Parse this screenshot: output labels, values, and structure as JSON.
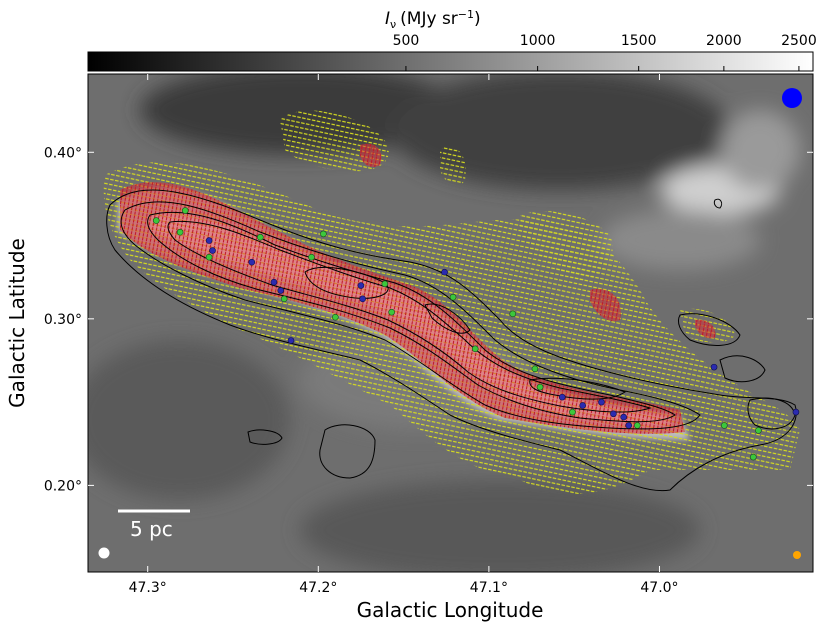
{
  "figure": {
    "colorbar_label_symbol": "I",
    "colorbar_label_sub": "ν",
    "colorbar_label_unit": "(MJy sr",
    "colorbar_label_exp": "−1",
    "colorbar_label_close": ")",
    "x_label": "Galactic Longitude",
    "y_label": "Galactic Latitude",
    "scale_bar_label": "5 pc"
  },
  "chart_data": {
    "type": "heatmap",
    "xlabel": "Galactic Longitude",
    "ylabel": "Galactic Latitude",
    "x_ticks": [
      {
        "value": 47.3,
        "label": "47.3°"
      },
      {
        "value": 47.2,
        "label": "47.2°"
      },
      {
        "value": 47.1,
        "label": "47.1°"
      },
      {
        "value": 47.0,
        "label": "47.0°"
      }
    ],
    "y_ticks": [
      {
        "value": 0.4,
        "label": "0.40°"
      },
      {
        "value": 0.3,
        "label": "0.30°"
      },
      {
        "value": 0.2,
        "label": "0.20°"
      }
    ],
    "xlim": [
      47.335,
      46.91
    ],
    "ylim": [
      0.148,
      0.447
    ],
    "colorbar": {
      "label": "Iν (MJy sr−1)",
      "scale": "sqrt",
      "range": [
        0,
        2600
      ],
      "ticks": [
        500,
        1000,
        1500,
        2000,
        2500
      ],
      "tick_labels": [
        "500",
        "1000",
        "1500",
        "2000",
        "2500"
      ],
      "cmap": "gray"
    },
    "filament_spine": [
      {
        "l": 47.32,
        "b": 0.358
      },
      {
        "l": 47.28,
        "b": 0.345
      },
      {
        "l": 47.24,
        "b": 0.33
      },
      {
        "l": 47.2,
        "b": 0.316
      },
      {
        "l": 47.17,
        "b": 0.313
      },
      {
        "l": 47.14,
        "b": 0.302
      },
      {
        "l": 47.11,
        "b": 0.29
      },
      {
        "l": 47.09,
        "b": 0.268
      },
      {
        "l": 47.06,
        "b": 0.252
      },
      {
        "l": 47.03,
        "b": 0.24
      },
      {
        "l": 47.0,
        "b": 0.235
      },
      {
        "l": 46.96,
        "b": 0.238
      },
      {
        "l": 46.92,
        "b": 0.24
      }
    ],
    "green_sources": [
      {
        "l": 47.295,
        "b": 0.359
      },
      {
        "l": 47.281,
        "b": 0.352
      },
      {
        "l": 47.278,
        "b": 0.365
      },
      {
        "l": 47.264,
        "b": 0.337
      },
      {
        "l": 47.234,
        "b": 0.349
      },
      {
        "l": 47.204,
        "b": 0.337
      },
      {
        "l": 47.197,
        "b": 0.351
      },
      {
        "l": 47.22,
        "b": 0.312
      },
      {
        "l": 47.19,
        "b": 0.301
      },
      {
        "l": 47.161,
        "b": 0.321
      },
      {
        "l": 47.157,
        "b": 0.304
      },
      {
        "l": 47.121,
        "b": 0.313
      },
      {
        "l": 47.108,
        "b": 0.282
      },
      {
        "l": 47.073,
        "b": 0.27
      },
      {
        "l": 47.07,
        "b": 0.259
      },
      {
        "l": 47.051,
        "b": 0.244
      },
      {
        "l": 47.013,
        "b": 0.236
      },
      {
        "l": 46.962,
        "b": 0.236
      },
      {
        "l": 46.942,
        "b": 0.233
      },
      {
        "l": 46.945,
        "b": 0.217
      },
      {
        "l": 47.086,
        "b": 0.303
      }
    ],
    "blue_sources": [
      {
        "l": 47.264,
        "b": 0.347
      },
      {
        "l": 47.262,
        "b": 0.341
      },
      {
        "l": 47.239,
        "b": 0.334
      },
      {
        "l": 47.226,
        "b": 0.322
      },
      {
        "l": 47.222,
        "b": 0.317
      },
      {
        "l": 47.175,
        "b": 0.32
      },
      {
        "l": 47.174,
        "b": 0.312
      },
      {
        "l": 47.126,
        "b": 0.328
      },
      {
        "l": 47.057,
        "b": 0.253
      },
      {
        "l": 47.045,
        "b": 0.248
      },
      {
        "l": 47.034,
        "b": 0.25
      },
      {
        "l": 47.027,
        "b": 0.243
      },
      {
        "l": 47.021,
        "b": 0.241
      },
      {
        "l": 47.018,
        "b": 0.236
      },
      {
        "l": 46.968,
        "b": 0.271
      },
      {
        "l": 46.92,
        "b": 0.244
      },
      {
        "l": 47.216,
        "b": 0.287
      }
    ],
    "beam_markers": [
      {
        "name": "blue-beam",
        "color": "#0000ff"
      },
      {
        "name": "white-beam",
        "color": "#ffffff"
      },
      {
        "name": "orange-beam",
        "color": "#ffa500"
      }
    ],
    "colors": {
      "green_source": "#3cc83c",
      "blue_source": "#2b2bb0",
      "vector_red": "#d8323a",
      "vector_yellow": "#d6dc20",
      "contour": "#000000"
    }
  }
}
